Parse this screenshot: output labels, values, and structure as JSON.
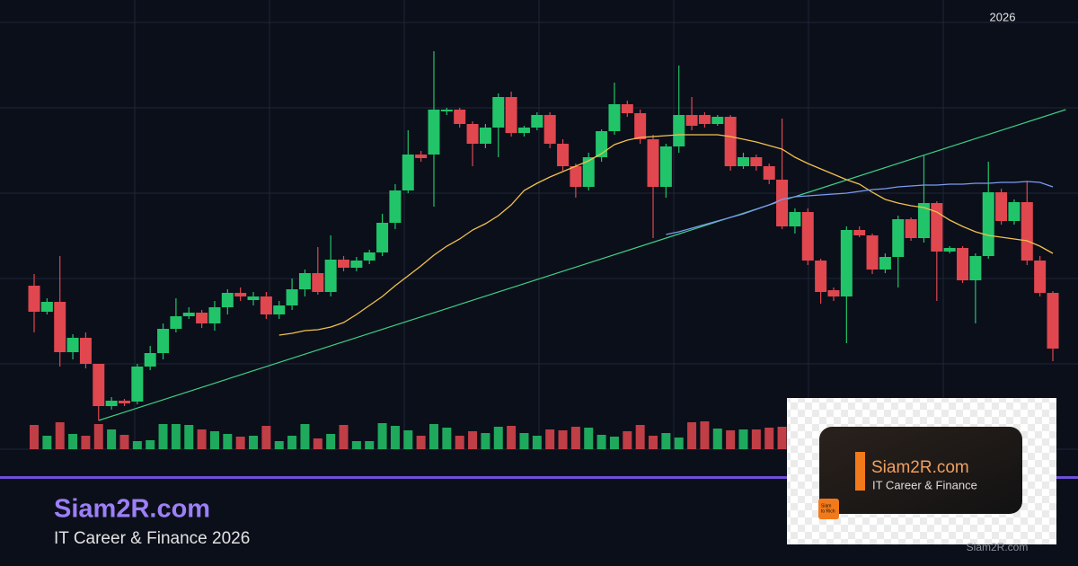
{
  "chart_data": {
    "type": "candlestick",
    "year_label": "2026",
    "ylim": [
      0,
      500
    ],
    "y2lim": [
      0,
      95
    ],
    "up_color": "#22c46a",
    "down_color": "#e0474f",
    "open": [
      182,
      153,
      164,
      108,
      124,
      95,
      48,
      54,
      53,
      92,
      107,
      134,
      148,
      152,
      140,
      158,
      174,
      166,
      170,
      150,
      160,
      178,
      196,
      175,
      211,
      202,
      210,
      219,
      252,
      288,
      328,
      328,
      376,
      378,
      362,
      340,
      358,
      392,
      352,
      358,
      372,
      340,
      315,
      292,
      325,
      354,
      384,
      374,
      345,
      292,
      337,
      372,
      372,
      362,
      370,
      315,
      325,
      315,
      300,
      248,
      264,
      210,
      177,
      170,
      244,
      238,
      200,
      214,
      256,
      235,
      274,
      220,
      224,
      188,
      215,
      286,
      254,
      275,
      210,
      174
    ],
    "high": [
      195,
      168,
      215,
      128,
      130,
      95,
      58,
      56,
      95,
      115,
      140,
      168,
      158,
      155,
      165,
      178,
      180,
      175,
      175,
      165,
      190,
      200,
      225,
      238,
      215,
      214,
      222,
      262,
      295,
      355,
      332,
      443,
      380,
      380,
      365,
      362,
      396,
      398,
      360,
      375,
      375,
      345,
      318,
      330,
      356,
      408,
      388,
      378,
      350,
      340,
      427,
      392,
      375,
      372,
      372,
      330,
      328,
      318,
      368,
      268,
      268,
      212,
      180,
      248,
      248,
      240,
      218,
      260,
      258,
      328,
      276,
      226,
      226,
      218,
      320,
      290,
      278,
      298,
      215,
      176
    ],
    "low": [
      130,
      150,
      92,
      100,
      90,
      32,
      44,
      48,
      50,
      88,
      100,
      130,
      145,
      135,
      132,
      150,
      165,
      160,
      145,
      145,
      155,
      170,
      172,
      170,
      198,
      198,
      206,
      215,
      245,
      285,
      320,
      270,
      372,
      358,
      315,
      335,
      325,
      348,
      348,
      355,
      335,
      310,
      280,
      288,
      320,
      350,
      370,
      340,
      235,
      280,
      330,
      355,
      358,
      360,
      310,
      312,
      310,
      295,
      245,
      240,
      205,
      162,
      165,
      118,
      236,
      195,
      196,
      180,
      232,
      230,
      165,
      218,
      185,
      140,
      212,
      250,
      250,
      205,
      170,
      98
    ],
    "close": [
      153,
      164,
      108,
      124,
      95,
      48,
      54,
      51,
      92,
      107,
      134,
      148,
      152,
      140,
      158,
      174,
      170,
      170,
      150,
      160,
      178,
      196,
      175,
      211,
      202,
      210,
      219,
      252,
      288,
      328,
      324,
      378,
      378,
      362,
      340,
      358,
      392,
      352,
      358,
      372,
      340,
      315,
      292,
      325,
      354,
      384,
      374,
      345,
      292,
      337,
      372,
      360,
      362,
      370,
      315,
      325,
      315,
      300,
      248,
      264,
      210,
      175,
      170,
      244,
      238,
      200,
      214,
      256,
      235,
      274,
      220,
      224,
      188,
      215,
      286,
      254,
      275,
      210,
      174,
      112
    ],
    "volume": [
      27,
      15,
      30,
      17,
      15,
      28,
      22,
      16,
      9,
      10,
      28,
      28,
      27,
      22,
      20,
      17,
      14,
      15,
      26,
      9,
      15,
      28,
      12,
      17,
      27,
      9,
      9,
      29,
      26,
      21,
      15,
      28,
      24,
      15,
      20,
      18,
      25,
      26,
      18,
      15,
      22,
      21,
      25,
      24,
      16,
      14,
      20,
      27,
      15,
      18,
      13,
      30,
      31,
      23,
      21,
      22,
      22,
      24,
      25,
      14,
      null,
      null,
      null,
      null,
      null,
      null,
      null,
      null,
      null,
      null,
      null,
      null,
      null,
      null,
      null,
      null,
      null,
      null,
      null,
      null
    ],
    "lines": [
      {
        "color": "#f2c14e",
        "values": [
          null,
          null,
          null,
          null,
          null,
          null,
          null,
          null,
          null,
          null,
          null,
          null,
          null,
          null,
          null,
          null,
          null,
          null,
          null,
          127,
          129,
          132,
          133,
          136,
          141,
          150,
          160,
          170,
          182,
          193,
          204,
          216,
          226,
          234,
          244,
          251,
          260,
          272,
          288,
          296,
          303,
          309,
          315,
          321,
          329,
          339,
          344,
          347,
          348,
          349,
          350,
          350,
          350,
          350,
          348,
          345,
          342,
          338,
          334,
          325,
          318,
          312,
          306,
          300,
          295,
          286,
          278,
          274,
          271,
          269,
          264,
          255,
          248,
          242,
          238,
          236,
          234,
          232,
          226,
          218
        ]
      },
      {
        "color": "#7d9bf0",
        "values": [
          null,
          null,
          null,
          null,
          null,
          null,
          null,
          null,
          null,
          null,
          null,
          null,
          null,
          null,
          null,
          null,
          null,
          null,
          null,
          null,
          null,
          null,
          null,
          null,
          null,
          null,
          null,
          null,
          null,
          null,
          null,
          null,
          null,
          null,
          null,
          null,
          null,
          null,
          null,
          null,
          null,
          null,
          null,
          null,
          null,
          null,
          null,
          null,
          null,
          239,
          242,
          246,
          250,
          254,
          258,
          262,
          267,
          272,
          278,
          281,
          282,
          283,
          284,
          285,
          287,
          289,
          290,
          292,
          293,
          294,
          294,
          295,
          295,
          296,
          296,
          297,
          297,
          298,
          297,
          292
        ]
      }
    ],
    "trendline": {
      "color": "#3ecf85",
      "x": [
        5,
        80
      ],
      "values": [
        32,
        378
      ]
    }
  },
  "brand": {
    "title": "Siam2R.com",
    "subtitle": "IT Career & Finance 2026"
  },
  "card": {
    "title": "Siam2R.com",
    "subtitle": "IT Career & Finance",
    "badge": [
      "Siam",
      "to Rich"
    ]
  },
  "watermark": "Siam2R.com"
}
